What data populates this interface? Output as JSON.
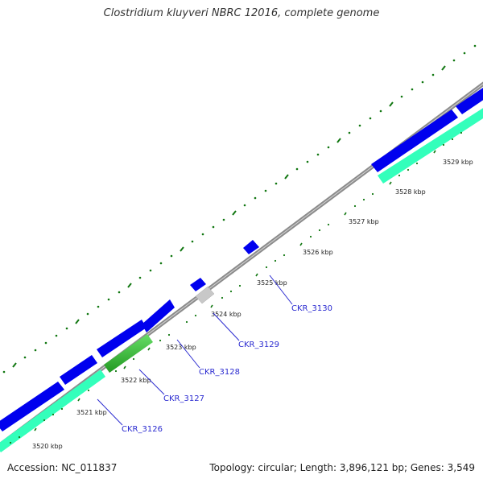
{
  "header": {
    "title": "Clostridium kluyveri NBRC 12016, complete genome"
  },
  "footer": {
    "accession": "Accession: NC_011837",
    "summary": "Topology: circular; Length: 3,896,121 bp; Genes: 3,549"
  },
  "ruler": {
    "ticks": [
      "3520 kbp",
      "3521 kbp",
      "3522 kbp",
      "3523 kbp",
      "3524 kbp",
      "3525 kbp",
      "3526 kbp",
      "3527 kbp",
      "3528 kbp",
      "3529 kbp"
    ]
  },
  "genes": {
    "labels": [
      "CKR_3126",
      "CKR_3127",
      "CKR_3128",
      "CKR_3129",
      "CKR_3130"
    ]
  },
  "colors": {
    "forward_cds": "#0000ee",
    "reverse_cds": "#33ffbb",
    "rna": "#33bb33",
    "other": "#c8c8c8",
    "backbone": "#808080",
    "major_tick": "#117711",
    "label": "#2a2ad0"
  }
}
